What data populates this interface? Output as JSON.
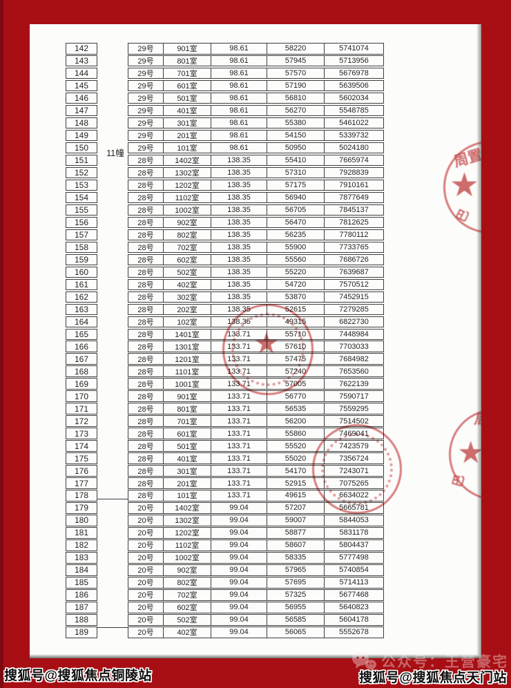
{
  "colors": {
    "background_red": "#a70f14",
    "background_red_dark": "#7c0a10",
    "page_white": "#fcfcfb",
    "table_border": "#3c3c3c",
    "stamp_red": "#cd5252"
  },
  "table": {
    "building_groups": [
      {
        "label": "11幢",
        "row_start": "142",
        "row_end": "178"
      },
      {
        "label": "",
        "row_start": "179",
        "row_end": "189"
      }
    ],
    "rows": [
      [
        "142",
        "29号",
        "901室",
        "98.61",
        "58220",
        "5741074"
      ],
      [
        "143",
        "29号",
        "801室",
        "98.61",
        "57945",
        "5713956"
      ],
      [
        "144",
        "29号",
        "701室",
        "98.61",
        "57570",
        "5676978"
      ],
      [
        "145",
        "29号",
        "601室",
        "98.61",
        "57190",
        "5639506"
      ],
      [
        "146",
        "29号",
        "501室",
        "98.61",
        "56810",
        "5602034"
      ],
      [
        "147",
        "29号",
        "401室",
        "98.61",
        "56270",
        "5548785"
      ],
      [
        "148",
        "29号",
        "301室",
        "98.61",
        "55380",
        "5461022"
      ],
      [
        "149",
        "29号",
        "201室",
        "98.61",
        "54150",
        "5339732"
      ],
      [
        "150",
        "29号",
        "101室",
        "98.61",
        "50950",
        "5024180"
      ],
      [
        "151",
        "28号",
        "1402室",
        "138.35",
        "55410",
        "7665974"
      ],
      [
        "152",
        "28号",
        "1302室",
        "138.35",
        "57310",
        "7928839"
      ],
      [
        "153",
        "28号",
        "1202室",
        "138.35",
        "57175",
        "7910161"
      ],
      [
        "154",
        "28号",
        "1102室",
        "138.35",
        "56940",
        "7877649"
      ],
      [
        "155",
        "28号",
        "1002室",
        "138.35",
        "56705",
        "7845137"
      ],
      [
        "156",
        "28号",
        "902室",
        "138.35",
        "56470",
        "7812625"
      ],
      [
        "157",
        "28号",
        "802室",
        "138.35",
        "56235",
        "7780112"
      ],
      [
        "158",
        "28号",
        "702室",
        "138.35",
        "55900",
        "7733765"
      ],
      [
        "159",
        "28号",
        "602室",
        "138.35",
        "55560",
        "7686726"
      ],
      [
        "160",
        "28号",
        "502室",
        "138.35",
        "55220",
        "7639687"
      ],
      [
        "161",
        "28号",
        "402室",
        "138.35",
        "54720",
        "7570512"
      ],
      [
        "162",
        "28号",
        "302室",
        "138.35",
        "53870",
        "7452915"
      ],
      [
        "163",
        "28号",
        "202室",
        "138.35",
        "52615",
        "7279285"
      ],
      [
        "164",
        "28号",
        "102室",
        "138.35",
        "49315",
        "6822730"
      ],
      [
        "165",
        "28号",
        "1401室",
        "133.71",
        "55710",
        "7448984"
      ],
      [
        "166",
        "28号",
        "1301室",
        "133.71",
        "57610",
        "7703033"
      ],
      [
        "167",
        "28号",
        "1201室",
        "133.71",
        "57475",
        "7684982"
      ],
      [
        "168",
        "28号",
        "1101室",
        "133.71",
        "57240",
        "7653560"
      ],
      [
        "169",
        "28号",
        "1001室",
        "133.71",
        "57005",
        "7622139"
      ],
      [
        "170",
        "28号",
        "901室",
        "133.71",
        "56770",
        "7590717"
      ],
      [
        "171",
        "28号",
        "801室",
        "133.71",
        "56535",
        "7559295"
      ],
      [
        "172",
        "28号",
        "701室",
        "133.71",
        "56200",
        "7514502"
      ],
      [
        "173",
        "28号",
        "601室",
        "133.71",
        "55860",
        "7469041"
      ],
      [
        "174",
        "28号",
        "501室",
        "133.71",
        "55520",
        "7423579"
      ],
      [
        "175",
        "28号",
        "401室",
        "133.71",
        "55020",
        "7356724"
      ],
      [
        "176",
        "28号",
        "301室",
        "133.71",
        "54170",
        "7243071"
      ],
      [
        "177",
        "28号",
        "201室",
        "133.71",
        "52915",
        "7075265"
      ],
      [
        "178",
        "28号",
        "101室",
        "133.71",
        "49615",
        "6634022"
      ],
      [
        "179",
        "20号",
        "1402室",
        "99.04",
        "57207",
        "5665781"
      ],
      [
        "180",
        "20号",
        "1302室",
        "99.04",
        "59007",
        "5844053"
      ],
      [
        "181",
        "20号",
        "1202室",
        "99.04",
        "58877",
        "5831178"
      ],
      [
        "182",
        "20号",
        "1102室",
        "99.04",
        "58607",
        "5804437"
      ],
      [
        "183",
        "20号",
        "1002室",
        "99.04",
        "58335",
        "5777498"
      ],
      [
        "184",
        "20号",
        "902室",
        "99.04",
        "57965",
        "5740854"
      ],
      [
        "185",
        "20号",
        "802室",
        "99.04",
        "57695",
        "5714113"
      ],
      [
        "186",
        "20号",
        "702室",
        "99.04",
        "57325",
        "5677468"
      ],
      [
        "187",
        "20号",
        "602室",
        "99.04",
        "56955",
        "5640823"
      ],
      [
        "188",
        "20号",
        "502室",
        "99.04",
        "56585",
        "5604178"
      ],
      [
        "189",
        "20号",
        "402室",
        "99.04",
        "56065",
        "5552678"
      ]
    ]
  },
  "stamps": {
    "seal_top_right": {
      "arc_top": "周置",
      "star": "★",
      "arc_bottom": "巴"
    },
    "seal_center": {
      "star": "★"
    },
    "seal_right_lower": {
      "arc_top": "周",
      "star": "★",
      "arc_bottom": "巴"
    },
    "seal_center_lower": {}
  },
  "watermarks": {
    "bottom_left": "搜狐号@搜狐焦点铜陵站",
    "bottom_right": "搜狐号@搜狐焦点天门站",
    "wechat_overlay": "公众号：王营豪宅",
    "wechat_icon": "wechat-chat-bubbles-icon"
  }
}
